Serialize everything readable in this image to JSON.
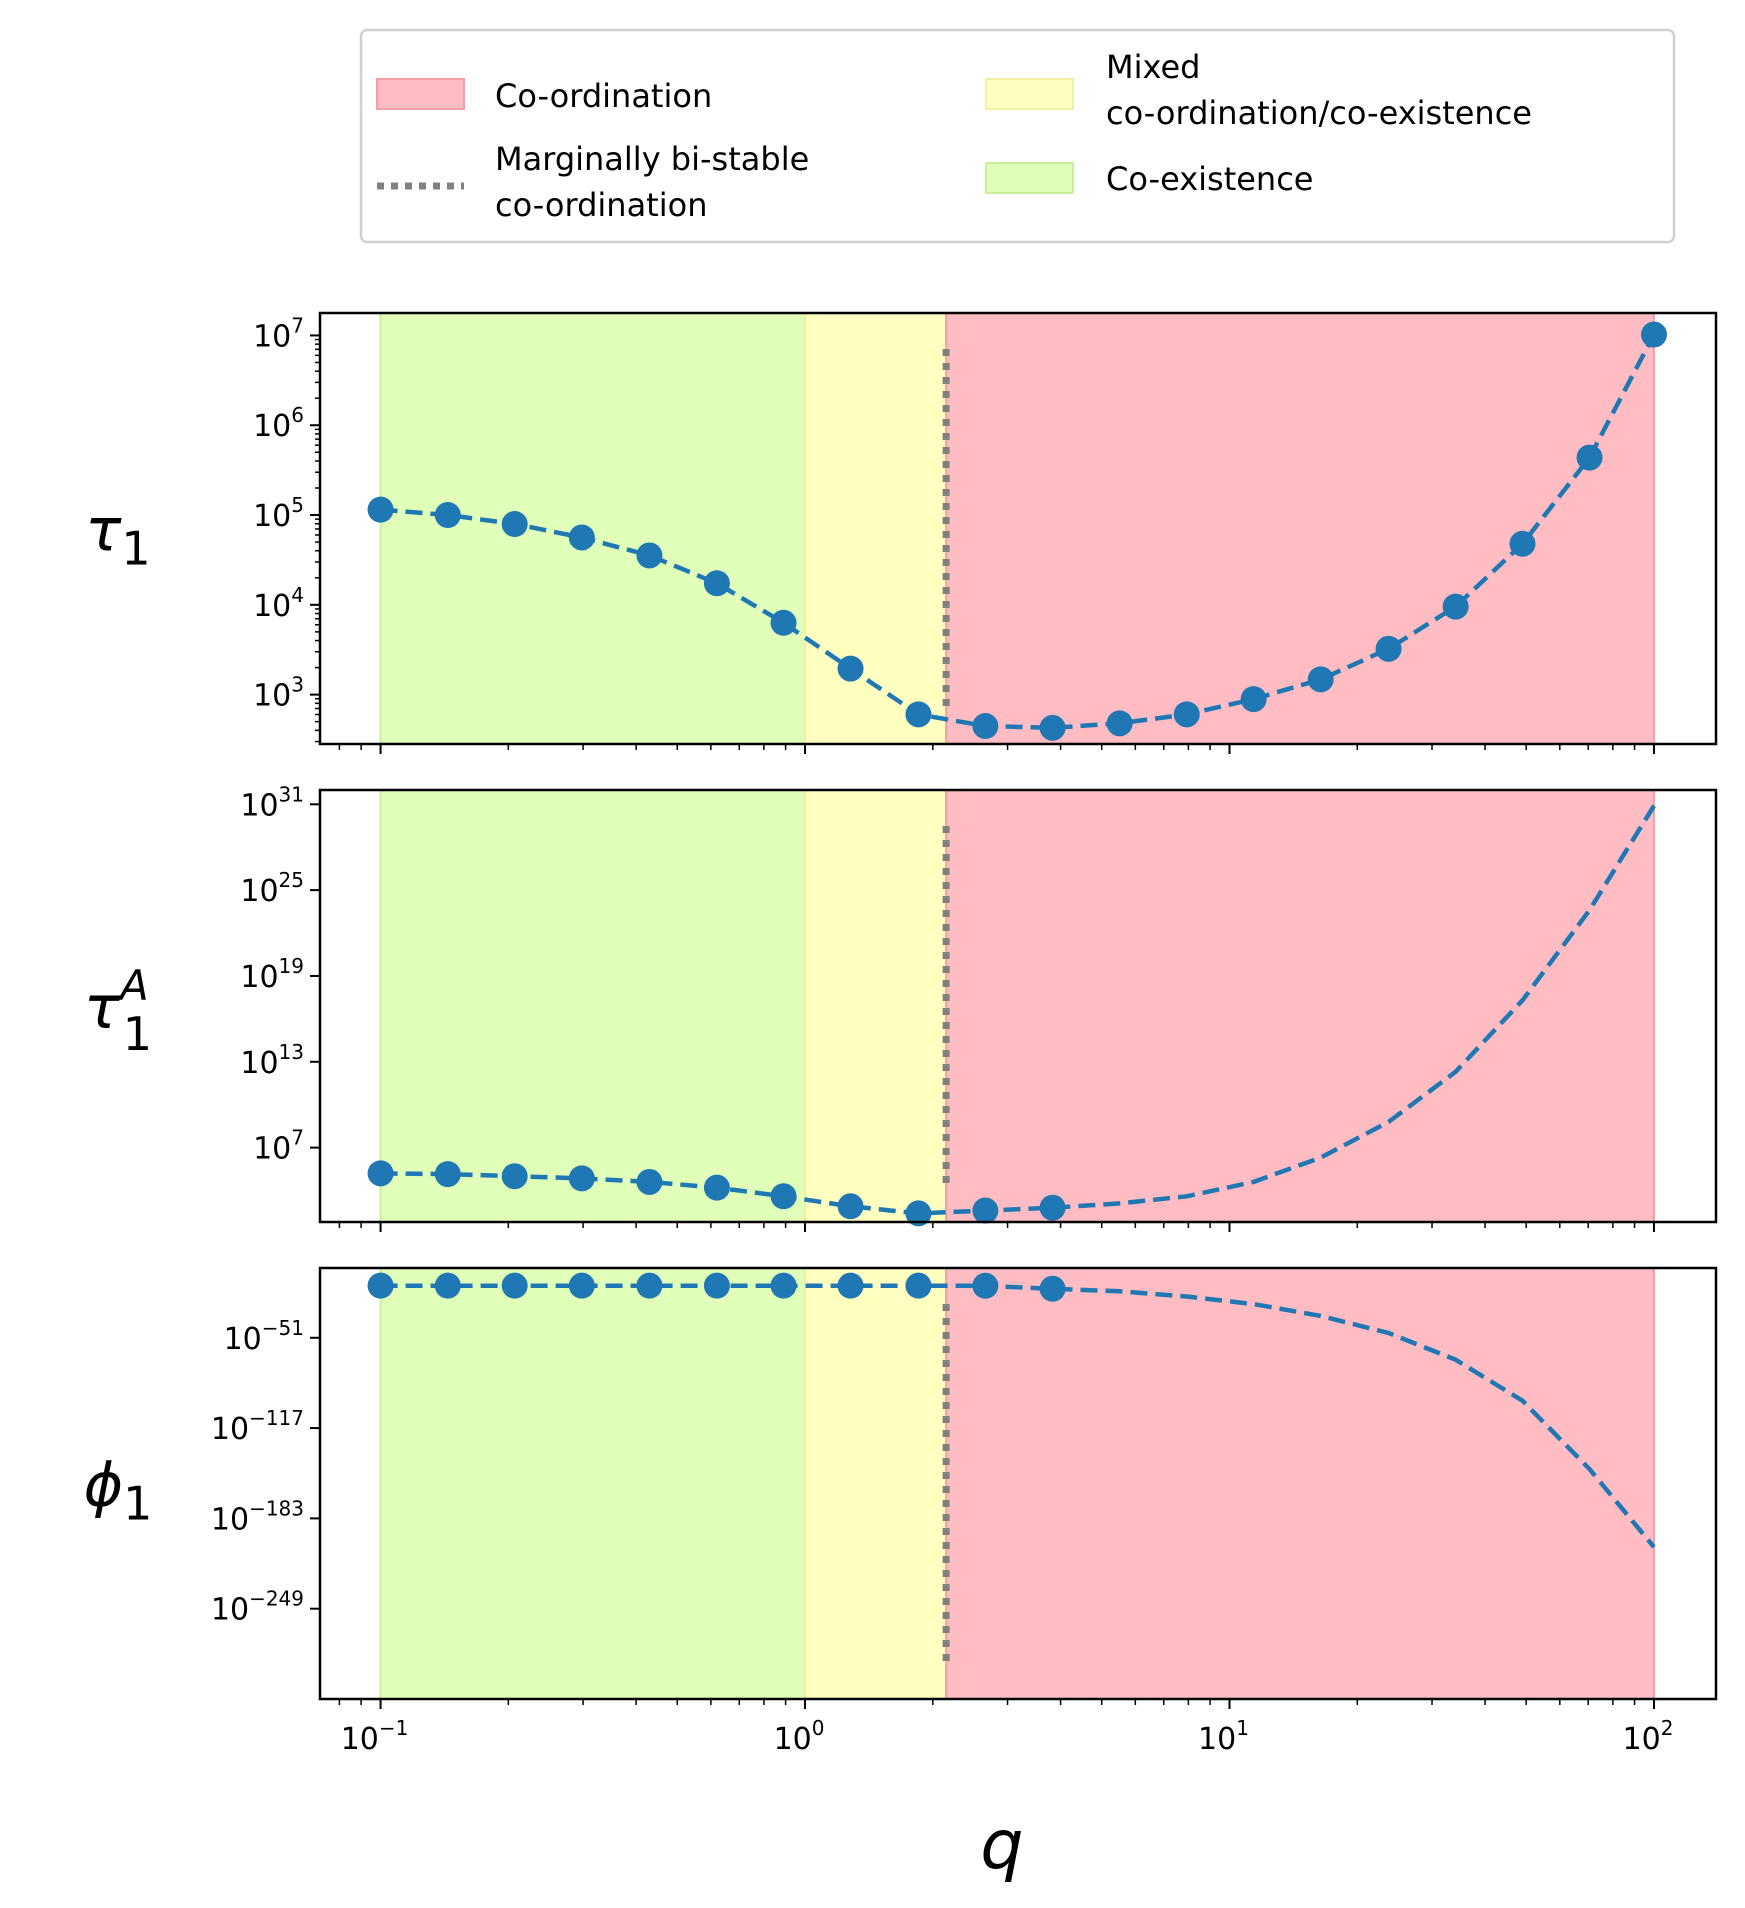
{
  "colors": {
    "coordination": "#ffbcc2",
    "coordination_edge": "#f2a0a6",
    "mixed": "#ffffc0",
    "mixed_edge": "#f0f0a0",
    "coexistence": "#e0ffb9",
    "coexistence_edge": "#c8f09a",
    "marginal_line": "#808080",
    "series": "#1f77b4"
  },
  "legend": {
    "items": [
      {
        "name": "coordination",
        "label_lines": [
          "Co-ordination"
        ]
      },
      {
        "name": "marginal",
        "label_lines": [
          "Marginally bi-stable",
          "co-ordination"
        ]
      },
      {
        "name": "mixed",
        "label_lines": [
          "Mixed",
          "co-ordination/co-existence"
        ]
      },
      {
        "name": "coexistence",
        "label_lines": [
          "Co-existence"
        ]
      }
    ]
  },
  "chart_data": {
    "type": "line",
    "xscale": "log",
    "xlabel": "q",
    "xlim": [
      0.072,
      140
    ],
    "xticks": [
      {
        "v": 0.1,
        "base": "10",
        "exp": "−1"
      },
      {
        "v": 1,
        "base": "10",
        "exp": "0"
      },
      {
        "v": 10,
        "base": "10",
        "exp": "1"
      },
      {
        "v": 100,
        "base": "10",
        "exp": "2"
      }
    ],
    "regions": {
      "coexistence": [
        0.1,
        1.0
      ],
      "mixed": [
        1.0,
        2.15
      ],
      "coordination": [
        2.15,
        100
      ],
      "marginal_q": 2.15
    },
    "panels": [
      {
        "name": "tau1",
        "ylabel": "τ",
        "ylabel_sub": "1",
        "ylabel_sup": "",
        "yscale": "log",
        "ylim_log10": [
          2.45,
          7.25
        ],
        "yticks": [
          {
            "v": 3,
            "base": "10",
            "exp": "3"
          },
          {
            "v": 4,
            "base": "10",
            "exp": "4"
          },
          {
            "v": 5,
            "base": "10",
            "exp": "5"
          },
          {
            "v": 6,
            "base": "10",
            "exp": "6"
          },
          {
            "v": 7,
            "base": "10",
            "exp": "7"
          }
        ],
        "minor_ticks": true,
        "points_q": [
          0.1,
          0.144,
          0.207,
          0.298,
          0.43,
          0.62,
          0.89,
          1.28,
          1.85,
          2.66,
          3.83,
          5.51,
          7.93,
          11.4,
          16.4,
          23.7,
          34.1,
          49.0,
          70.5,
          100
        ],
        "points_log10": [
          5.06,
          5.0,
          4.9,
          4.75,
          4.55,
          4.24,
          3.8,
          3.29,
          2.78,
          2.65,
          2.63,
          2.68,
          2.78,
          2.95,
          3.17,
          3.51,
          3.98,
          4.68,
          5.64,
          7.01
        ],
        "line_q": [
          0.1,
          0.144,
          0.207,
          0.298,
          0.43,
          0.62,
          0.89,
          1.28,
          1.85,
          2.66,
          3.83,
          5.51,
          7.93,
          11.4,
          16.4,
          23.7,
          34.1,
          49.0,
          70.5,
          100
        ],
        "line_log10": [
          5.06,
          5.0,
          4.9,
          4.75,
          4.55,
          4.24,
          3.8,
          3.29,
          2.78,
          2.65,
          2.63,
          2.68,
          2.78,
          2.95,
          3.17,
          3.51,
          3.98,
          4.68,
          5.64,
          7.01
        ]
      },
      {
        "name": "tau1A",
        "ylabel": "τ",
        "ylabel_sub": "1",
        "ylabel_sup": "A",
        "yscale": "log",
        "ylim_log10": [
          1.8,
          32.0
        ],
        "yticks": [
          {
            "v": 7,
            "base": "10",
            "exp": "7"
          },
          {
            "v": 13,
            "base": "10",
            "exp": "13"
          },
          {
            "v": 19,
            "base": "10",
            "exp": "19"
          },
          {
            "v": 25,
            "base": "10",
            "exp": "25"
          },
          {
            "v": 31,
            "base": "10",
            "exp": "31"
          }
        ],
        "minor_ticks": false,
        "points_q": [
          0.1,
          0.144,
          0.207,
          0.298,
          0.43,
          0.62,
          0.89,
          1.28,
          1.85,
          2.66,
          3.83
        ],
        "points_log10": [
          5.2,
          5.15,
          5.0,
          4.85,
          4.6,
          4.2,
          3.6,
          2.9,
          2.4,
          2.6,
          2.8
        ],
        "line_q": [
          0.1,
          0.144,
          0.207,
          0.298,
          0.43,
          0.62,
          0.89,
          1.28,
          1.85,
          2.66,
          3.83,
          5.51,
          7.93,
          11.4,
          16.4,
          23.7,
          34.1,
          49.0,
          70.5,
          100
        ],
        "line_log10": [
          5.2,
          5.15,
          5.0,
          4.85,
          4.6,
          4.2,
          3.6,
          2.9,
          2.4,
          2.6,
          2.8,
          3.1,
          3.6,
          4.6,
          6.3,
          8.8,
          12.3,
          17.3,
          23.6,
          30.9
        ]
      },
      {
        "name": "phi1",
        "ylabel": "ϕ",
        "ylabel_sub": "1",
        "ylabel_sup": "",
        "yscale": "log",
        "ylim_log10": [
          -315,
          0
        ],
        "yticks": [
          {
            "v": -51,
            "base": "10",
            "exp": "−51"
          },
          {
            "v": -117,
            "base": "10",
            "exp": "−117"
          },
          {
            "v": -183,
            "base": "10",
            "exp": "−183"
          },
          {
            "v": -249,
            "base": "10",
            "exp": "−249"
          }
        ],
        "minor_ticks": false,
        "points_q": [
          0.1,
          0.144,
          0.207,
          0.298,
          0.43,
          0.62,
          0.89,
          1.28,
          1.85,
          2.66,
          3.83
        ],
        "points_log10": [
          -12.9,
          -12.9,
          -12.9,
          -12.9,
          -12.9,
          -12.9,
          -12.9,
          -12.9,
          -12.9,
          -13.0,
          -15.2
        ],
        "line_q": [
          0.1,
          0.144,
          0.207,
          0.298,
          0.43,
          0.62,
          0.89,
          1.28,
          1.85,
          2.66,
          3.83,
          5.51,
          7.93,
          11.4,
          16.4,
          23.7,
          34.1,
          49.0,
          70.5,
          100
        ],
        "line_log10": [
          -12.9,
          -12.9,
          -12.9,
          -12.9,
          -12.9,
          -12.9,
          -12.9,
          -12.9,
          -12.9,
          -13.0,
          -15.2,
          -17.0,
          -20.8,
          -26.4,
          -35.0,
          -47.5,
          -67.0,
          -97.0,
          -147.0,
          -204.0
        ]
      }
    ]
  }
}
